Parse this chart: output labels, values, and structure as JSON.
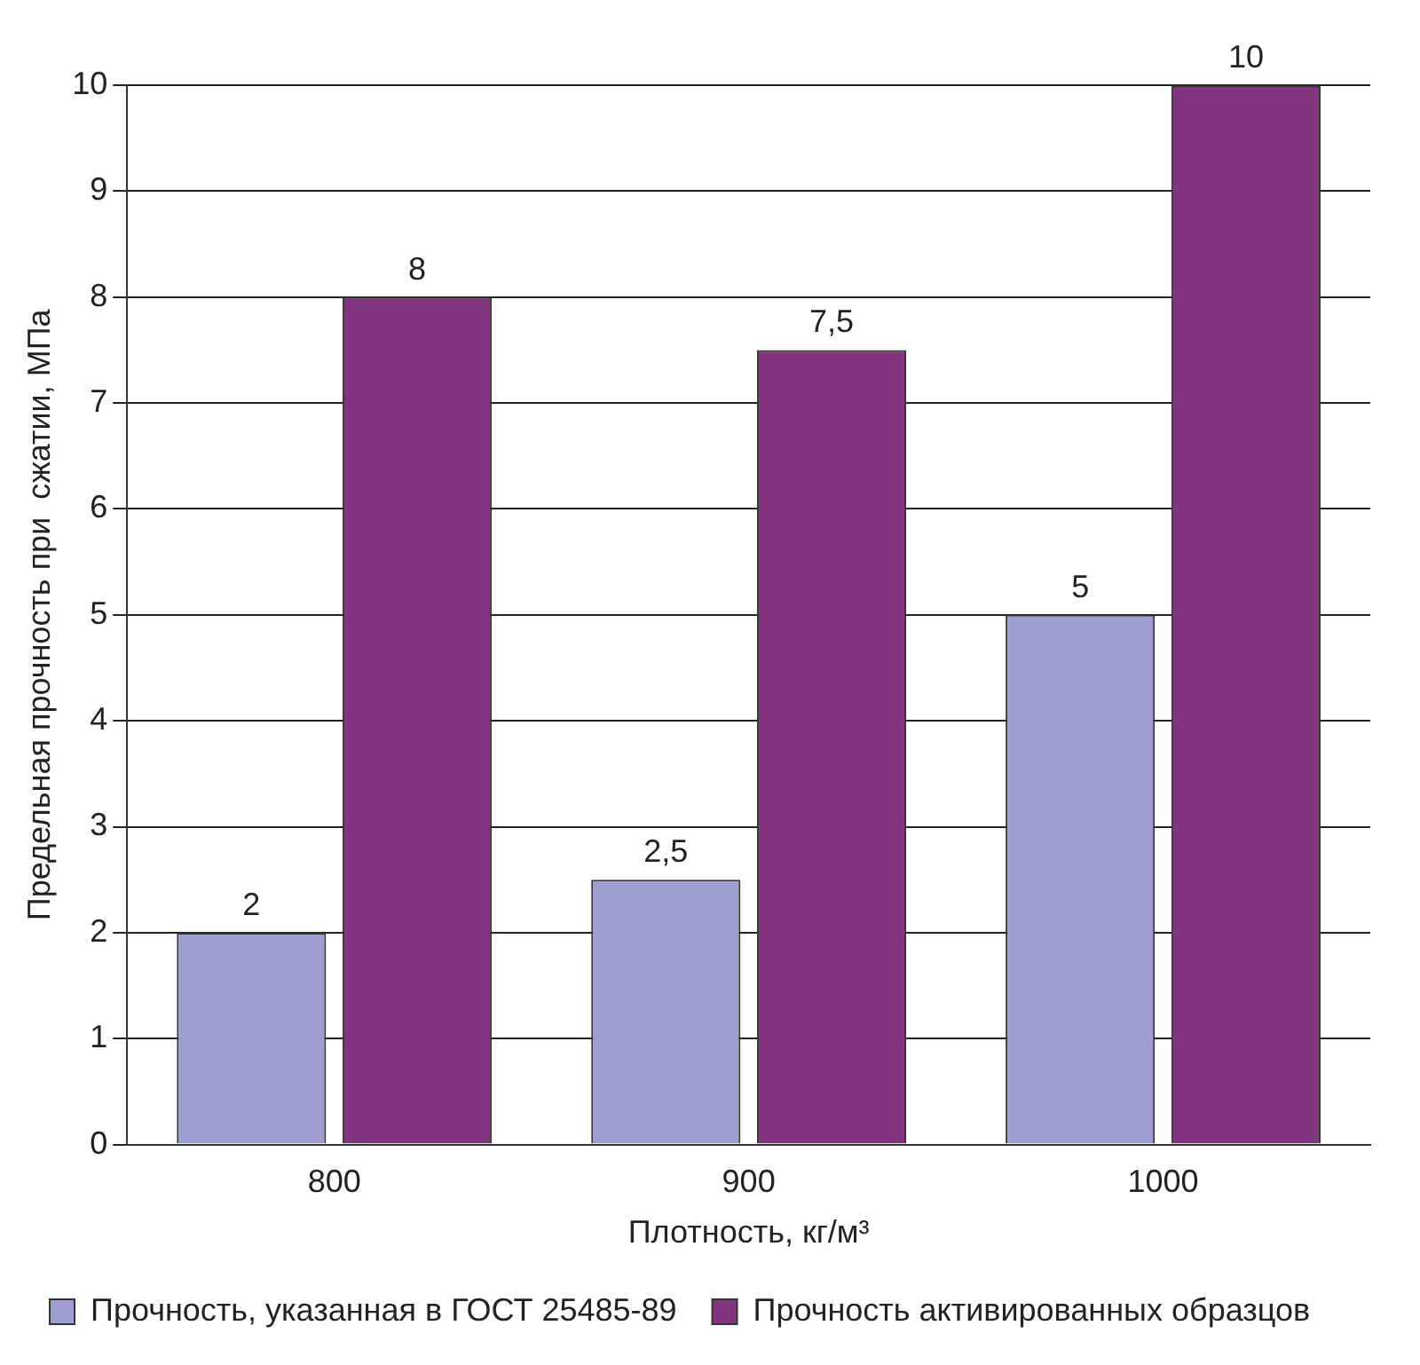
{
  "chart_data": {
    "type": "bar",
    "xlabel": "Плотность, кг/м³",
    "ylabel": "Предельная прочность при  сжатии, МПа",
    "categories": [
      "800",
      "900",
      "1000"
    ],
    "series": [
      {
        "name": "Прочность, указанная в ГОСТ 25485-89",
        "color": "#9f9ed2",
        "values": [
          2,
          2.5,
          5
        ],
        "value_labels": [
          "2",
          "2,5",
          "5"
        ]
      },
      {
        "name": "Прочность активированных образцов",
        "color": "#82357f",
        "values": [
          8,
          7.5,
          10
        ],
        "value_labels": [
          "8",
          "7,5",
          "10"
        ]
      }
    ],
    "ylim": [
      0,
      10
    ],
    "yticks": [
      0,
      1,
      2,
      3,
      4,
      5,
      6,
      7,
      8,
      9,
      10
    ],
    "grid": "y",
    "legend": "bottom"
  }
}
